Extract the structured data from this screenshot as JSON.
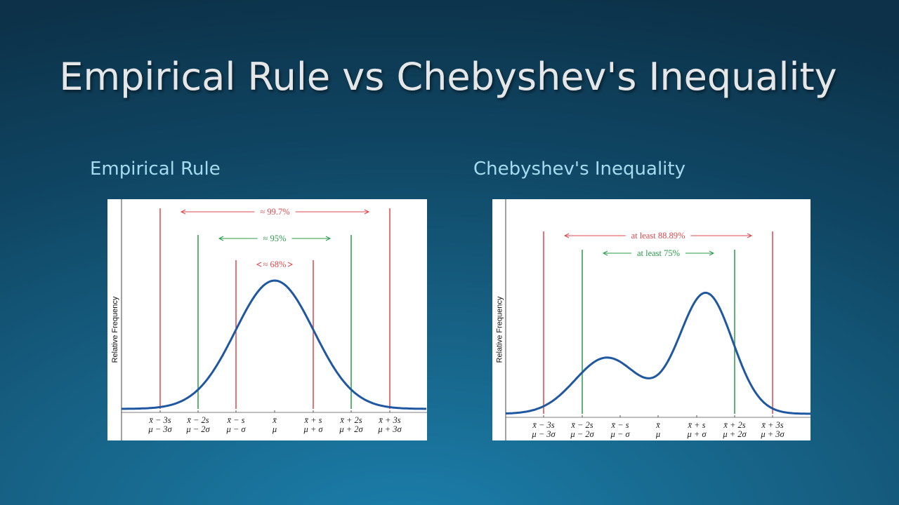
{
  "slide": {
    "title": "Empirical Rule vs Chebyshev's Inequality",
    "panels": [
      {
        "heading": "Empirical Rule",
        "ylabel": "Relative Frequency",
        "annotations": [
          "≈ 99.7%",
          "≈ 95%",
          "≈ 68%"
        ],
        "ticks": [
          {
            "sample": "x̄ − 3s",
            "population": "μ − 3σ"
          },
          {
            "sample": "x̄ − 2s",
            "population": "μ − 2σ"
          },
          {
            "sample": "x̄ − s",
            "population": "μ − σ"
          },
          {
            "sample": "x̄",
            "population": "μ"
          },
          {
            "sample": "x̄ + s",
            "population": "μ + σ"
          },
          {
            "sample": "x̄ + 2s",
            "population": "μ + 2σ"
          },
          {
            "sample": "x̄ + 3s",
            "population": "μ + 3σ"
          }
        ]
      },
      {
        "heading": "Chebyshev's Inequality",
        "ylabel": "Relative Frequency",
        "annotations": [
          "at least 88.89%",
          "at least 75%"
        ],
        "ticks": [
          {
            "sample": "x̄ − 3s",
            "population": "μ − 3σ"
          },
          {
            "sample": "x̄ − 2s",
            "population": "μ − 2σ"
          },
          {
            "sample": "x̄ − s",
            "population": "μ − σ"
          },
          {
            "sample": "x̄",
            "population": "μ"
          },
          {
            "sample": "x̄ + s",
            "population": "μ + σ"
          },
          {
            "sample": "x̄ + 2s",
            "population": "μ + 2σ"
          },
          {
            "sample": "x̄ + 3s",
            "population": "μ + 3σ"
          }
        ]
      }
    ]
  }
}
